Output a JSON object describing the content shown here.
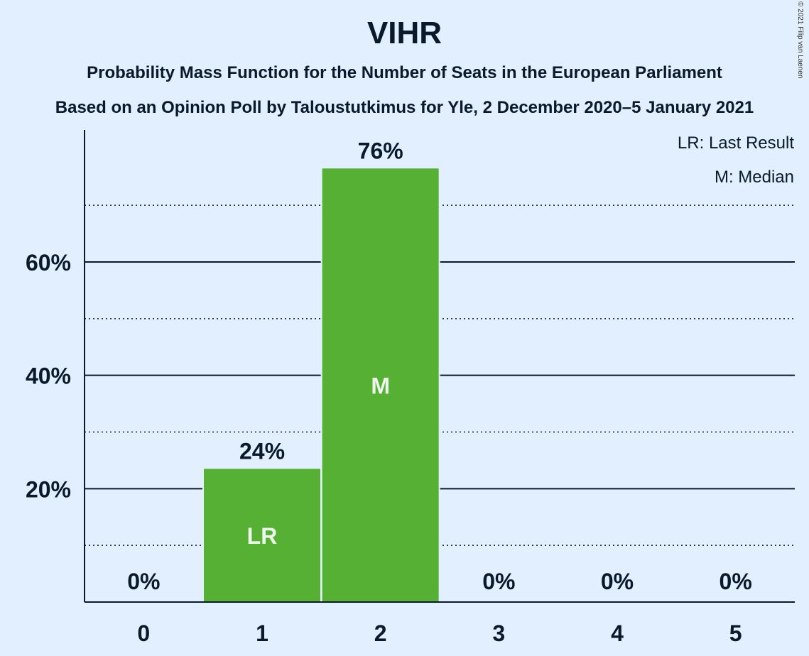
{
  "chart_data": {
    "type": "bar",
    "title": "VIHR",
    "subtitle": [
      "Probability Mass Function for the Number of Seats in the European Parliament",
      "Based on an Opinion Poll by Taloustutkimus for Yle, 2 December 2020–5 January 2021"
    ],
    "categories": [
      "0",
      "1",
      "2",
      "3",
      "4",
      "5"
    ],
    "values": [
      0,
      23.5,
      76.5,
      0,
      0,
      0
    ],
    "value_labels": [
      "0%",
      "24%",
      "76%",
      "0%",
      "0%",
      "0%"
    ],
    "bar_marks": [
      "",
      "LR",
      "M",
      "",
      "",
      ""
    ],
    "ylim": [
      0,
      83
    ],
    "y_ticks": [
      20,
      40,
      60
    ],
    "y_tick_labels": [
      "20%",
      "40%",
      "60%"
    ],
    "y_minor_ticks": [
      10,
      30,
      50,
      70
    ],
    "legend": [
      "LR: Last Result",
      "M: Median"
    ],
    "legend_position": "top-right",
    "bar_color": "#55b033",
    "background_color": "#e1efff"
  },
  "copyright": "© 2021 Filip van Laenen"
}
